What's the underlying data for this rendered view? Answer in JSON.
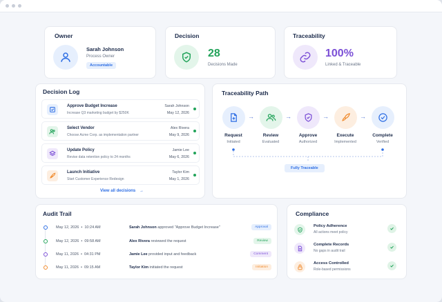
{
  "colors": {
    "accent": "#2f6fe4",
    "green": "#22a35a",
    "purple": "#7b4fd6",
    "orange": "#f08a2c",
    "blue_light": "#e6effd",
    "green_light": "#e3f5ea",
    "purple_light": "#efe8fb",
    "orange_light": "#fdeee0"
  },
  "owner": {
    "title": "Owner",
    "name": "Sarah Johnson",
    "role": "Process Owner",
    "badge": "Accountable",
    "icon": "user-icon"
  },
  "decision": {
    "title": "Decision",
    "count": "28",
    "label": "Decisions Made",
    "icon": "shield-check-icon"
  },
  "traceability": {
    "title": "Traceability",
    "value": "100%",
    "label": "Linked & Traceable",
    "icon": "link-icon"
  },
  "decision_log": {
    "title": "Decision Log",
    "items": [
      {
        "title": "Approve Budget Increase",
        "desc": "Increase Q3 marketing budget by $250K",
        "person": "Sarah Johnson",
        "date": "May 12, 2026",
        "icon": "checkbox-icon"
      },
      {
        "title": "Select Vendor",
        "desc": "Choose Acme Corp. as implementation partner",
        "person": "Alex Rivera",
        "date": "May 9, 2026",
        "icon": "users-icon"
      },
      {
        "title": "Update Policy",
        "desc": "Revise data retention policy to 24 months",
        "person": "Jamie Lee",
        "date": "May 6, 2026",
        "icon": "layers-icon"
      },
      {
        "title": "Launch Initiative",
        "desc": "Start Customer Experience Redesign",
        "person": "Taylor Kim",
        "date": "May 1, 2026",
        "icon": "rocket-icon"
      }
    ],
    "view_all": "View all decisions"
  },
  "trace_path": {
    "title": "Traceability Path",
    "steps": [
      {
        "label": "Request",
        "sub": "Initiated",
        "icon": "document-plus-icon"
      },
      {
        "label": "Review",
        "sub": "Evaluated",
        "icon": "users-icon"
      },
      {
        "label": "Approve",
        "sub": "Authorized",
        "icon": "shield-check-icon"
      },
      {
        "label": "Execute",
        "sub": "Implemented",
        "icon": "rocket-icon"
      },
      {
        "label": "Complete",
        "sub": "Verified",
        "icon": "check-circle-icon"
      }
    ],
    "badge": "Fully Traceable"
  },
  "audit": {
    "title": "Audit Trail",
    "rows": [
      {
        "date": "May 12, 2026",
        "time": "10:24 AM",
        "actor": "Sarah Johnson",
        "action": "approved \"Approve Budget Increase\"",
        "tag": "Approval"
      },
      {
        "date": "May 12, 2026",
        "time": "09:58 AM",
        "actor": "Alex Rivera",
        "action": "reviewed the request",
        "tag": "Review"
      },
      {
        "date": "May 11, 2026",
        "time": "04:31 PM",
        "actor": "Jamie Lee",
        "action": "provided input and feedback",
        "tag": "Comment"
      },
      {
        "date": "May 11, 2026",
        "time": "09:15 AM",
        "actor": "Taylor Kim",
        "action": "initiated the request",
        "tag": "Initiation"
      }
    ]
  },
  "compliance": {
    "title": "Compliance",
    "items": [
      {
        "title": "Policy Adherence",
        "desc": "All actions meet policy",
        "icon": "shield-check-icon"
      },
      {
        "title": "Complete Records",
        "desc": "No gaps in audit trail",
        "icon": "document-icon"
      },
      {
        "title": "Access Controlled",
        "desc": "Role-based permissions",
        "icon": "lock-icon"
      }
    ]
  }
}
